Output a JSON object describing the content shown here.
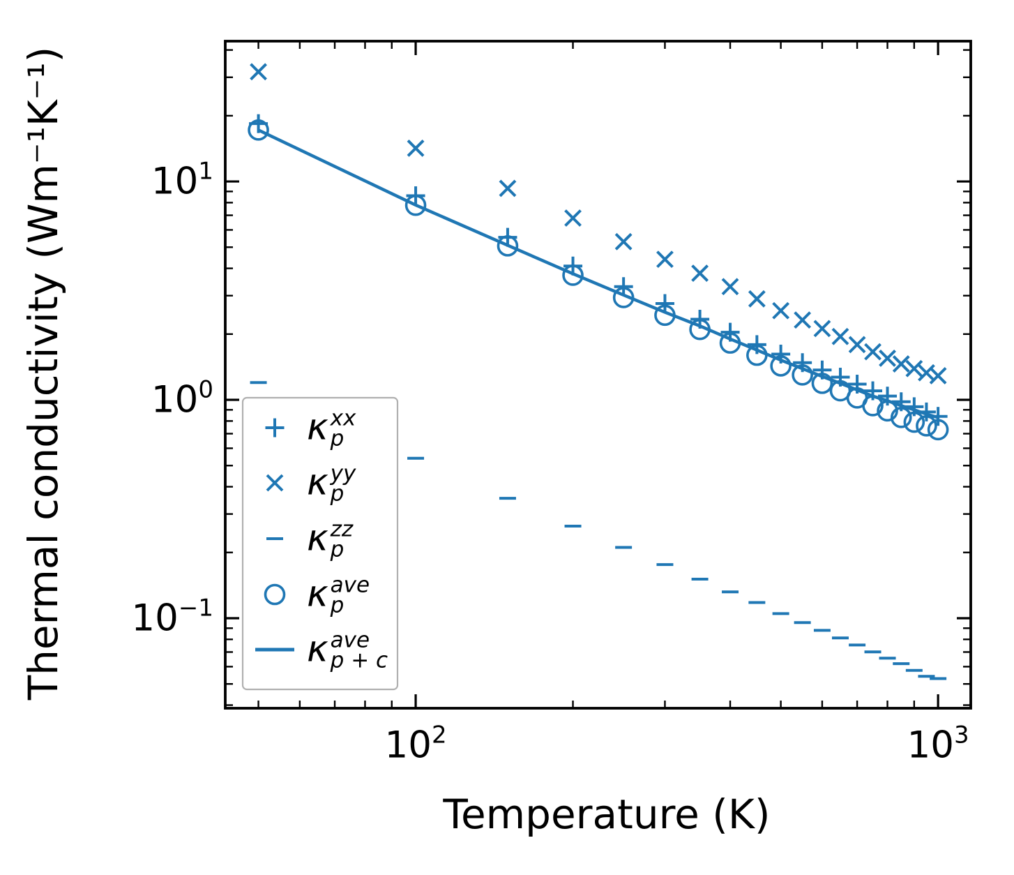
{
  "chart_data": {
    "type": "scatter",
    "title": "",
    "xlabel": "Temperature (K)",
    "ylabel": "Thermal conductivity (Wm⁻¹K⁻¹)",
    "x_scale": "log",
    "y_scale": "log",
    "xlim": [
      43.2,
      1155
    ],
    "ylim": [
      0.0387,
      43.9
    ],
    "grid": false,
    "legend_position": "lower left inside",
    "colors": {
      "series_blue": "#1f77b4",
      "axis_black": "#000000",
      "legend_border": "#b0b0b0",
      "background": "#ffffff"
    },
    "x_ticks_major": {
      "values": [
        100,
        1000
      ],
      "labels": [
        {
          "base": "10",
          "exp": "2"
        },
        {
          "base": "10",
          "exp": "3"
        }
      ]
    },
    "x_ticks_minor": [
      50,
      60,
      70,
      80,
      90,
      200,
      300,
      400,
      500,
      600,
      700,
      800,
      900
    ],
    "y_ticks_major": {
      "values": [
        10,
        1,
        0.1
      ],
      "labels": [
        {
          "base": "10",
          "exp": "1"
        },
        {
          "base": "10",
          "exp": "0"
        },
        {
          "base": "10",
          "exp": "−1"
        }
      ]
    },
    "y_ticks_minor": [
      40,
      30,
      20,
      9,
      8,
      7,
      6,
      5,
      4,
      3,
      2,
      0.9,
      0.8,
      0.7,
      0.6,
      0.5,
      0.4,
      0.3,
      0.2,
      0.09,
      0.08,
      0.07,
      0.06,
      0.05,
      0.04
    ],
    "x": [
      50,
      100,
      150,
      200,
      250,
      300,
      350,
      400,
      450,
      500,
      550,
      600,
      650,
      700,
      750,
      800,
      850,
      900,
      950,
      1000
    ],
    "series": [
      {
        "name": "kappa-p-xx",
        "marker": "plus",
        "legend": {
          "kappa": "κ",
          "sup": "xx",
          "sub": "p",
          "plain": "κ_p^xx"
        },
        "values": [
          18.4,
          8.6,
          5.55,
          4.1,
          3.3,
          2.76,
          2.34,
          2.04,
          1.79,
          1.62,
          1.48,
          1.37,
          1.27,
          1.18,
          1.1,
          1.04,
          0.98,
          0.93,
          0.88,
          0.84
        ]
      },
      {
        "name": "kappa-p-yy",
        "marker": "x",
        "legend": {
          "kappa": "κ",
          "sup": "yy",
          "sub": "p",
          "plain": "κ_p^yy"
        },
        "values": [
          31.8,
          14.2,
          9.3,
          6.8,
          5.3,
          4.4,
          3.8,
          3.3,
          2.9,
          2.56,
          2.32,
          2.12,
          1.95,
          1.79,
          1.66,
          1.55,
          1.46,
          1.39,
          1.33,
          1.29
        ]
      },
      {
        "name": "kappa-p-zz",
        "marker": "hline",
        "legend": {
          "kappa": "κ",
          "sup": "zz",
          "sub": "p",
          "plain": "κ_p^zz"
        },
        "values": [
          1.2,
          0.54,
          0.354,
          0.264,
          0.211,
          0.176,
          0.151,
          0.132,
          0.118,
          0.105,
          0.0955,
          0.088,
          0.0812,
          0.0754,
          0.0701,
          0.0656,
          0.0619,
          0.0577,
          0.0542,
          0.0529
        ]
      },
      {
        "name": "kappa-p-ave",
        "marker": "circle",
        "legend": {
          "kappa": "κ",
          "sup": "ave",
          "sub": "p",
          "plain": "κ_p^ave"
        },
        "values": [
          17.2,
          7.78,
          5.07,
          3.72,
          2.94,
          2.44,
          2.1,
          1.82,
          1.6,
          1.43,
          1.3,
          1.19,
          1.1,
          1.02,
          0.94,
          0.89,
          0.83,
          0.79,
          0.76,
          0.73
        ]
      },
      {
        "name": "kappa-p-plus-c-ave",
        "marker": "line",
        "legend": {
          "kappa": "κ",
          "sup": "ave",
          "sub": "p + c",
          "plain": "κ_(p+c)^ave"
        },
        "values": [
          17.2,
          7.8,
          5.1,
          3.78,
          3.02,
          2.52,
          2.18,
          1.9,
          1.69,
          1.52,
          1.39,
          1.28,
          1.19,
          1.11,
          1.04,
          0.99,
          0.94,
          0.9,
          0.86,
          0.83
        ]
      }
    ]
  }
}
